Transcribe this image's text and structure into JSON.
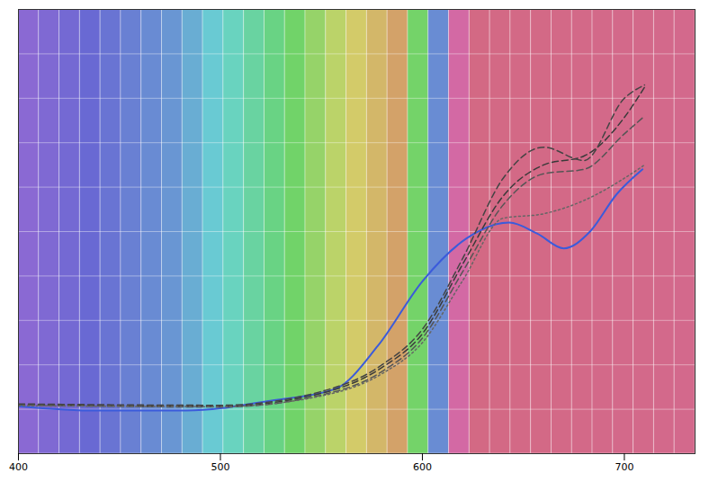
{
  "chart_data": {
    "type": "line",
    "xlim": [
      400,
      735
    ],
    "xticks": [
      400,
      500,
      600,
      700
    ],
    "ylim": [
      0,
      100
    ],
    "yticks": [
      0,
      10,
      20,
      30,
      40,
      50,
      60,
      70,
      80,
      90,
      100
    ],
    "grid": true,
    "tick_labels": "x",
    "series": [
      {
        "color": "#3b5bdb",
        "line_style": "solid",
        "x": [
          400,
          439,
          483,
          526,
          557,
          578,
          600,
          622,
          643,
          657,
          670,
          683,
          696,
          709
        ],
        "values": [
          10.7,
          9.7,
          9.7,
          12,
          14.6,
          24.3,
          38.8,
          48.5,
          52,
          49.5,
          46.2,
          50,
          58.3,
          64
        ]
      },
      {
        "color": "#3a3a3a",
        "line_style": "dashed",
        "x": [
          400,
          500,
          550,
          580,
          600,
          620,
          640,
          660,
          680,
          700,
          710
        ],
        "values": [
          11,
          10.7,
          13.6,
          19.4,
          27,
          42.7,
          58,
          65,
          67,
          75.7,
          82.5
        ]
      },
      {
        "color": "#555555",
        "line_style": "dashed",
        "x": [
          400,
          500,
          550,
          580,
          600,
          620,
          640,
          660,
          680,
          700,
          710
        ],
        "values": [
          11,
          10.5,
          13.2,
          18.5,
          26,
          41,
          56,
          63,
          64,
          72,
          76
        ]
      },
      {
        "color": "#444444",
        "line_style": "dashed",
        "x": [
          400,
          500,
          550,
          580,
          600,
          620,
          640,
          660,
          680,
          700,
          710
        ],
        "values": [
          11.2,
          10.9,
          14,
          20,
          28,
          44,
          62,
          69,
          66,
          80,
          83
        ]
      },
      {
        "color": "#666666",
        "line_style": "dotted",
        "x": [
          400,
          500,
          550,
          580,
          600,
          620,
          640,
          660,
          680,
          700,
          710
        ],
        "values": [
          10.8,
          10.6,
          13,
          18,
          25,
          39,
          53,
          54,
          57,
          62,
          65
        ]
      }
    ]
  }
}
